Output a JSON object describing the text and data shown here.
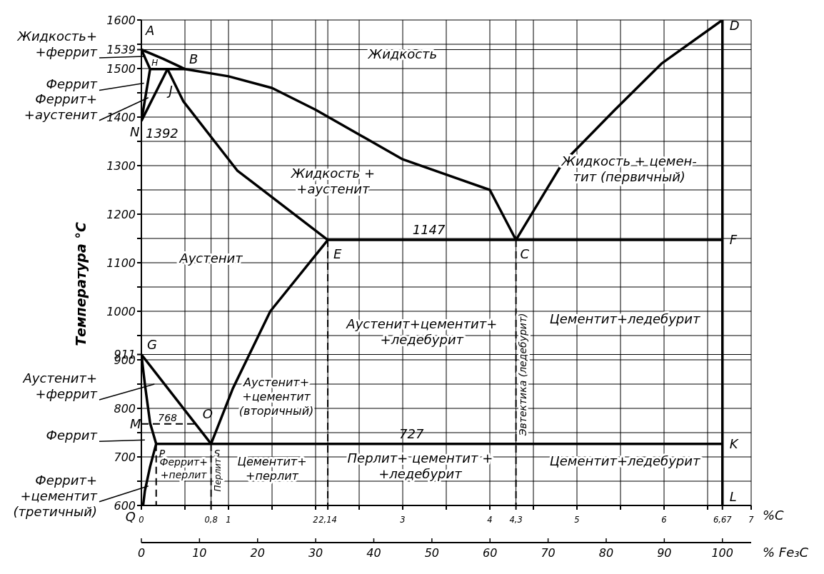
{
  "chart_data": {
    "type": "line",
    "xlabel": "%C",
    "x2label": "% Fe₃C",
    "ylabel": "Температура °C",
    "xlim": [
      0,
      7
    ],
    "ylim": [
      600,
      1600
    ],
    "x2lim": [
      0,
      104.95
    ],
    "xticks": [
      0,
      {
        "value": 0.5,
        "label": null
      },
      {
        "value": 0.8,
        "label": "0,8"
      },
      1,
      {
        "value": 1.5,
        "label": null
      },
      2,
      {
        "value": 2.14,
        "label": "2,14"
      },
      {
        "value": 2.5,
        "label": null
      },
      3,
      {
        "value": 3.5,
        "label": null
      },
      4,
      {
        "value": 4.3,
        "label": "4,3"
      },
      {
        "value": 4.5,
        "label": null
      },
      5,
      {
        "value": 5.5,
        "label": null
      },
      6,
      {
        "value": 6.5,
        "label": null
      },
      {
        "value": 6.67,
        "label": "6,67"
      },
      7
    ],
    "x2ticks": [
      0,
      10,
      20,
      30,
      40,
      50,
      60,
      70,
      80,
      90,
      100
    ],
    "yticks": [
      600,
      {
        "value": 650,
        "label": null
      },
      700,
      {
        "value": 750,
        "label": null
      },
      800,
      {
        "value": 850,
        "label": null
      },
      900,
      911,
      {
        "value": 950,
        "label": null
      },
      1000,
      {
        "value": 1050,
        "label": null
      },
      1100,
      {
        "value": 1150,
        "label": null
      },
      1200,
      {
        "value": 1250,
        "label": null
      },
      1300,
      {
        "value": 1350,
        "label": null
      },
      1400,
      {
        "value": 1450,
        "label": null
      },
      1500,
      1539,
      {
        "value": 1550,
        "label": null
      },
      1600
    ],
    "grid": true,
    "line_style": "solid",
    "ref_lines": [
      {
        "axis": "x",
        "value": 6.67,
        "color": "#000000",
        "line_style": "solid"
      }
    ],
    "series": [
      {
        "color": "#000000",
        "x": [
          0,
          0.25,
          0.5,
          1.0,
          1.5,
          2.0,
          3.0,
          4.0,
          4.3
        ],
        "values": [
          1539,
          1520,
          1499,
          1484,
          1460,
          1415,
          1313,
          1250,
          1147
        ]
      },
      {
        "color": "#000000",
        "x": [
          4.3,
          4.83,
          5.43,
          5.97,
          6.67
        ],
        "values": [
          1147,
          1304,
          1414,
          1510,
          1600
        ]
      },
      {
        "color": "#000000",
        "x": [
          0,
          0.1
        ],
        "values": [
          1539,
          1499
        ]
      },
      {
        "color": "#000000",
        "x": [
          0.1,
          0.5
        ],
        "values": [
          1499,
          1499
        ]
      },
      {
        "color": "#000000",
        "x": [
          0.1,
          0
        ],
        "values": [
          1499,
          1392
        ]
      },
      {
        "color": "#000000",
        "x": [
          0.3,
          0
        ],
        "values": [
          1499,
          1392
        ]
      },
      {
        "color": "#000000",
        "x": [
          0.3,
          0.48,
          1.1,
          2.14
        ],
        "values": [
          1499,
          1433,
          1290,
          1147
        ]
      },
      {
        "color": "#000000",
        "x": [
          2.14,
          6.67
        ],
        "values": [
          1147,
          1147
        ]
      },
      {
        "color": "#000000",
        "x": [
          0,
          0.8
        ],
        "values": [
          911,
          727
        ]
      },
      {
        "color": "#000000",
        "x": [
          0,
          0.04,
          0.1,
          0.17
        ],
        "values": [
          911,
          850,
          770,
          727
        ]
      },
      {
        "color": "#000000",
        "x": [
          0,
          0.62
        ],
        "values": [
          768,
          768
        ],
        "line_style": "dashed"
      },
      {
        "color": "#000000",
        "x": [
          0.17,
          6.67
        ],
        "values": [
          727,
          727
        ]
      },
      {
        "color": "#000000",
        "x": [
          0.8,
          1.05,
          1.48,
          2.14
        ],
        "values": [
          727,
          841,
          1000,
          1147
        ]
      },
      {
        "color": "#000000",
        "x": [
          0.17,
          0.1,
          0.04,
          0.02
        ],
        "values": [
          727,
          680,
          630,
          600
        ]
      },
      {
        "color": "#000000",
        "x": [
          2.14,
          2.14
        ],
        "values": [
          1147,
          600
        ],
        "line_style": "dashed"
      },
      {
        "color": "#000000",
        "x": [
          4.3,
          4.3
        ],
        "values": [
          1147,
          600
        ],
        "line_style": "dashed"
      },
      {
        "color": "#000000",
        "x": [
          0.8,
          0.8
        ],
        "values": [
          727,
          600
        ],
        "line_style": "dashed"
      },
      {
        "color": "#000000",
        "x": [
          0.17,
          0.17
        ],
        "values": [
          727,
          600
        ],
        "line_style": "dashed"
      }
    ],
    "annotations": [
      {
        "text": "A",
        "x": 0,
        "y": 1539
      },
      {
        "text": "H",
        "x": 0.1,
        "y": 1499
      },
      {
        "text": "B",
        "x": 0.5,
        "y": 1499
      },
      {
        "text": "J",
        "x": 0.3,
        "y": 1499
      },
      {
        "text": "N",
        "x": 0,
        "y": 1392
      },
      {
        "text": "1392",
        "x": 0,
        "y": 1392
      },
      "Жидкость",
      "Жидкость +\n+аустенит",
      "Жидкость + цемен-\nтит (первичный)",
      {
        "text": "1147",
        "x": 3.3,
        "y": 1147
      },
      {
        "text": "E",
        "x": 2.14,
        "y": 1147
      },
      {
        "text": "C",
        "x": 4.3,
        "y": 1147
      },
      {
        "text": "D",
        "x": 6.67,
        "y": 1600
      },
      {
        "text": "F",
        "x": 6.67,
        "y": 1147
      },
      "Аустенит",
      "Аустенит+цементит+\n+ледебурит",
      "Эвтектика (ледебурит)",
      "Цементит+ледебурит",
      {
        "text": "G",
        "x": 0,
        "y": 911
      },
      {
        "text": "768",
        "x": 0.3,
        "y": 768
      },
      {
        "text": "O",
        "x": 0.62,
        "y": 768
      },
      {
        "text": "M",
        "x": 0,
        "y": 768
      },
      "Аустенит+\n+цементит\n(вторичный)",
      {
        "text": "727",
        "x": 3.1,
        "y": 727
      },
      {
        "text": "K",
        "x": 6.67,
        "y": 727
      },
      {
        "text": "P",
        "x": 0.17,
        "y": 727
      },
      {
        "text": "S",
        "x": 0.8,
        "y": 727
      },
      "Феррит+\n+перлит",
      "Перлит",
      "Цементит+\n+перлит",
      "Перлит+ цементит +\n+ледебурит",
      "Цементит+ледебурит",
      {
        "text": "L",
        "x": 6.67,
        "y": 600
      },
      {
        "text": "Q",
        "x": 0,
        "y": 600
      },
      {
        "text": "Жидкость+\n+феррит",
        "x": 0.03,
        "y": 1525
      },
      {
        "text": "Феррит",
        "x": 0.03,
        "y": 1470
      },
      {
        "text": "Феррит+\n+аустенит",
        "x": 0.08,
        "y": 1440
      },
      "Аустенит+\n+феррит",
      "Феррит",
      {
        "text": "Феррит+\n+цементит\n(третичный)",
        "x": 0.08,
        "y": 640
      }
    ]
  }
}
